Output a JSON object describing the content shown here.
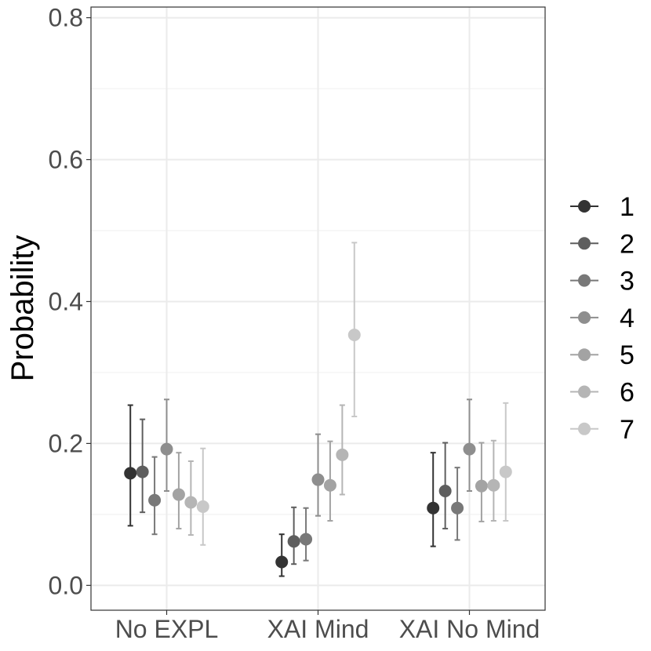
{
  "chart_data": {
    "type": "scatter",
    "title": "",
    "xlabel": "",
    "ylabel": "Probability",
    "categories": [
      "No EXPL",
      "XAI Mind",
      "XAI No Mind"
    ],
    "ylim": [
      -0.035,
      0.815
    ],
    "yticks": [
      "0.0",
      "0.2",
      "0.4",
      "0.6",
      "0.8"
    ],
    "grid": true,
    "legend_position": "right",
    "series": [
      {
        "name": "1",
        "color": "#333333",
        "values": [
          0.158,
          0.033,
          0.109
        ],
        "lower": [
          0.084,
          0.013,
          0.055
        ],
        "upper": [
          0.254,
          0.072,
          0.187
        ]
      },
      {
        "name": "2",
        "color": "#5e5e5e",
        "values": [
          0.16,
          0.062,
          0.133
        ],
        "lower": [
          0.103,
          0.03,
          0.08
        ],
        "upper": [
          0.234,
          0.11,
          0.201
        ]
      },
      {
        "name": "3",
        "color": "#787878",
        "values": [
          0.12,
          0.065,
          0.109
        ],
        "lower": [
          0.072,
          0.035,
          0.064
        ],
        "upper": [
          0.181,
          0.109,
          0.166
        ]
      },
      {
        "name": "4",
        "color": "#8e8e8e",
        "values": [
          0.192,
          0.149,
          0.192
        ],
        "lower": [
          0.133,
          0.098,
          0.133
        ],
        "upper": [
          0.262,
          0.213,
          0.262
        ]
      },
      {
        "name": "5",
        "color": "#a3a3a3",
        "values": [
          0.128,
          0.141,
          0.14
        ],
        "lower": [
          0.08,
          0.091,
          0.09
        ],
        "upper": [
          0.187,
          0.203,
          0.201
        ]
      },
      {
        "name": "6",
        "color": "#b5b5b5",
        "values": [
          0.117,
          0.184,
          0.141
        ],
        "lower": [
          0.071,
          0.128,
          0.091
        ],
        "upper": [
          0.175,
          0.254,
          0.204
        ]
      },
      {
        "name": "7",
        "color": "#c8c8c8",
        "values": [
          0.111,
          0.353,
          0.16
        ],
        "lower": [
          0.057,
          0.238,
          0.091
        ],
        "upper": [
          0.193,
          0.483,
          0.257
        ]
      }
    ]
  }
}
